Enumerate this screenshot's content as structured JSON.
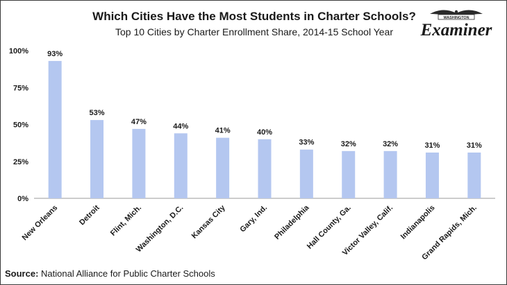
{
  "header": {
    "title": "Which Cities Have the Most Students in Charter Schools?",
    "subtitle": "Top 10 Cities by Charter Enrollment Share, 2014-15 School Year"
  },
  "logo": {
    "top_text": "WASHINGTON",
    "name": "Examiner",
    "icon": "eagle-icon"
  },
  "source": {
    "label": "Source:",
    "text": " National Alliance for Public Charter Schools"
  },
  "colors": {
    "bar": "#b4c7f0",
    "axis": "#999999",
    "text": "#1a1a1a"
  },
  "chart_data": {
    "type": "bar",
    "title": "Which Cities Have the Most Students in Charter Schools?",
    "subtitle": "Top 10 Cities by Charter Enrollment Share, 2014-15 School Year",
    "categories": [
      "New Orleans",
      "Detroit",
      "Flint, Mich.",
      "Washington, D.C.",
      "Kansas City",
      "Gary, Ind.",
      "Philadelphia",
      "Hall County, Ga.",
      "Victor Valley, Calif.",
      "Indianapolis",
      "Grand Rapids, Mich."
    ],
    "values": [
      93,
      53,
      47,
      44,
      41,
      40,
      33,
      32,
      32,
      31,
      31
    ],
    "data_labels": [
      "93%",
      "53%",
      "47%",
      "44%",
      "41%",
      "40%",
      "33%",
      "32%",
      "32%",
      "31%",
      "31%"
    ],
    "y_ticks": [
      0,
      25,
      50,
      75,
      100
    ],
    "y_tick_labels": [
      "0%",
      "25%",
      "50%",
      "75%",
      "100%"
    ],
    "ylim": [
      0,
      100
    ],
    "xlabel": "",
    "ylabel": "",
    "grid": false,
    "legend": "none"
  }
}
